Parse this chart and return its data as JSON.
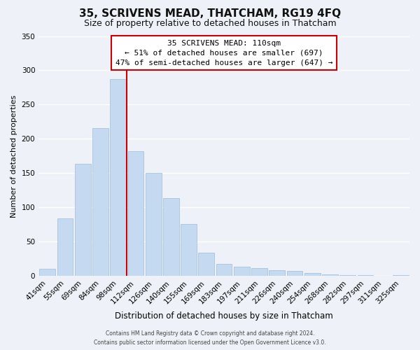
{
  "title": "35, SCRIVENS MEAD, THATCHAM, RG19 4FQ",
  "subtitle": "Size of property relative to detached houses in Thatcham",
  "xlabel": "Distribution of detached houses by size in Thatcham",
  "ylabel": "Number of detached properties",
  "bar_labels": [
    "41sqm",
    "55sqm",
    "69sqm",
    "84sqm",
    "98sqm",
    "112sqm",
    "126sqm",
    "140sqm",
    "155sqm",
    "169sqm",
    "183sqm",
    "197sqm",
    "211sqm",
    "226sqm",
    "240sqm",
    "254sqm",
    "268sqm",
    "282sqm",
    "297sqm",
    "311sqm",
    "325sqm"
  ],
  "bar_values": [
    11,
    84,
    164,
    216,
    287,
    182,
    150,
    114,
    76,
    34,
    18,
    14,
    12,
    9,
    8,
    5,
    2,
    1,
    1,
    0,
    1
  ],
  "bar_color": "#c5d9f0",
  "bar_edge_color": "#a8c4e0",
  "vline_color": "#cc0000",
  "vline_index": 5,
  "ylim": [
    0,
    350
  ],
  "yticks": [
    0,
    50,
    100,
    150,
    200,
    250,
    300,
    350
  ],
  "annotation_title": "35 SCRIVENS MEAD: 110sqm",
  "annotation_line1": "← 51% of detached houses are smaller (697)",
  "annotation_line2": "47% of semi-detached houses are larger (647) →",
  "annotation_box_color": "#ffffff",
  "annotation_box_edge": "#cc0000",
  "footer_line1": "Contains HM Land Registry data © Crown copyright and database right 2024.",
  "footer_line2": "Contains public sector information licensed under the Open Government Licence v3.0.",
  "background_color": "#eef2f8",
  "plot_background": "#eef2f8",
  "grid_color": "#ffffff",
  "title_fontsize": 11,
  "subtitle_fontsize": 9,
  "ylabel_fontsize": 8,
  "xlabel_fontsize": 8.5,
  "tick_fontsize": 7.5,
  "ann_fontsize": 8
}
